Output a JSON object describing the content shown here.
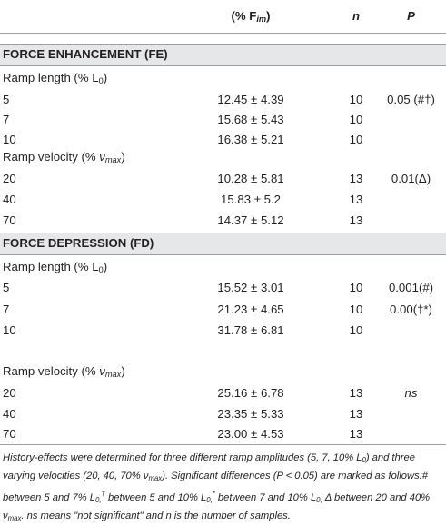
{
  "header": {
    "col1": "(% F",
    "col1_sub": "im",
    "col1_close": ")",
    "col2": "n",
    "col3": "P"
  },
  "fe": {
    "title": "FORCE ENHANCEMENT (FE)",
    "length_label": "Ramp length (% L",
    "length_sub": "0",
    "length_close": ")",
    "length_rows": [
      {
        "group": "5",
        "value": "12.45 ± 4.39",
        "n": "10",
        "p": "0.05 (#†)"
      },
      {
        "group": "7",
        "value": "15.68 ± 5.43",
        "n": "10",
        "p": ""
      },
      {
        "group": "10",
        "value": "16.38 ± 5.21",
        "n": "10",
        "p": ""
      }
    ],
    "velocity_label": "Ramp velocity (% ",
    "velocity_sym": "ν",
    "velocity_sub": "max",
    "velocity_close": ")",
    "velocity_rows": [
      {
        "group": "20",
        "value": "10.28 ± 5.81",
        "n": "13",
        "p": "0.01(Δ)"
      },
      {
        "group": "40",
        "value": "15.83 ± 5.2",
        "n": "13",
        "p": ""
      },
      {
        "group": "70",
        "value": "14.37 ± 5.12",
        "n": "13",
        "p": ""
      }
    ]
  },
  "fd": {
    "title": "FORCE DEPRESSION (FD)",
    "length_label": "Ramp length (% L",
    "length_sub": "0",
    "length_close": ")",
    "length_rows": [
      {
        "group": "5",
        "value": "15.52 ± 3.01",
        "n": "10",
        "p": "0.001(#)"
      },
      {
        "group": "7",
        "value": "21.23 ± 4.65",
        "n": "10",
        "p": "0.00(†*)"
      },
      {
        "group": "10",
        "value": "31.78 ± 6.81",
        "n": "10",
        "p": ""
      }
    ],
    "velocity_label": "Ramp velocity (% ",
    "velocity_sym": "ν",
    "velocity_sub": "max",
    "velocity_close": ")",
    "velocity_rows": [
      {
        "group": "20",
        "value": "25.16 ± 6.78",
        "n": "13",
        "p": "ns"
      },
      {
        "group": "40",
        "value": "23.35 ± 5.33",
        "n": "13",
        "p": ""
      },
      {
        "group": "70",
        "value": "23.00 ± 4.53",
        "n": "13",
        "p": ""
      }
    ]
  },
  "footnote": {
    "t1": "History-effects were determined for three different ramp amplitudes (5, 7, 10% L",
    "t1_sub": "0",
    "t2": ") and three varying velocities (20, 40, 70% ν",
    "t2_sub": "max",
    "t3": "). Significant differences (P < 0.05) are marked as follows:# between 5 and 7% L",
    "t3_sub": "0,",
    "t4_sup": "†",
    "t4": " between 5 and 10% L",
    "t4_sub": "0,",
    "t5_sup": "*",
    "t5": " between 7 and 10% L",
    "t5_sub": "0,",
    "t6": " Δ between 20 and 40% ν",
    "t6_sub": "max",
    "t7": ". ns means \"not significant\" and n is the number of samples."
  }
}
